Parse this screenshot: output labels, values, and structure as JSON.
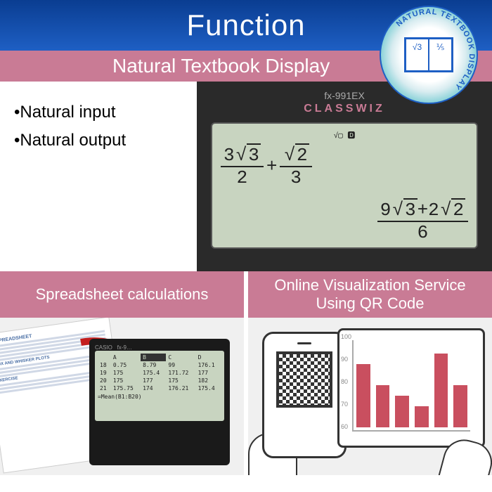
{
  "header": {
    "title": "Function"
  },
  "section1": {
    "title": "Natural Textbook Display",
    "bullets": [
      "•Natural input",
      "•Natural output"
    ],
    "calculator": {
      "model": "fx-991EX",
      "brand": "CLASSWIZ",
      "lcd_icons": "√▢   🅳",
      "background": "#c8d4c0",
      "text_color": "#222222"
    }
  },
  "section2": {
    "left_title": "Spreadsheet calculations",
    "right_title": "Online Visualization Service Using QR Code",
    "spreadsheet": {
      "columns": [
        "",
        "A",
        "B",
        "C",
        "D"
      ],
      "rows": [
        [
          "18",
          "0.75",
          "8.79",
          "99",
          "176.1"
        ],
        [
          "19",
          "175",
          "175.4",
          "171.72",
          "177"
        ],
        [
          "20",
          "175",
          "177",
          "175",
          "182"
        ],
        [
          "21",
          "175.75",
          "174",
          "176.21",
          "175.4"
        ]
      ],
      "formula": "=Mean(B1:B20)"
    },
    "chart": {
      "type": "bar",
      "values": [
        90,
        80,
        75,
        70,
        95,
        80
      ],
      "ylim": [
        60,
        100
      ],
      "ylabels": [
        "60",
        "70",
        "80",
        "90",
        "100"
      ],
      "bar_color": "#c94f5f",
      "axis_color": "#aaaaaa"
    }
  },
  "badge": {
    "ring_text": "NATURAL TEXTBOOK DISPLAY",
    "left_page": "√3",
    "right_page": "⅕"
  },
  "colors": {
    "header_grad_top": "#0a3d91",
    "header_grad_bottom": "#1e5fc4",
    "section_bar": "#c97b95",
    "arrow": "#c41e1e"
  }
}
